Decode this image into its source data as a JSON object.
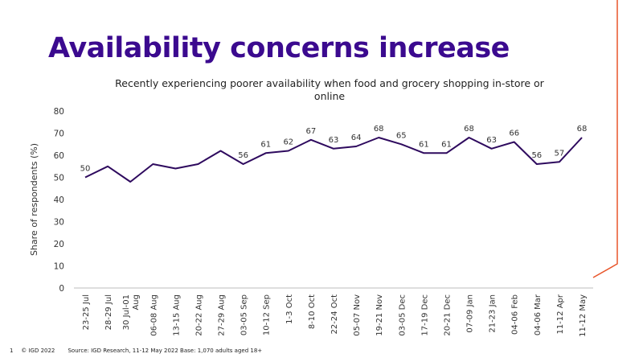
{
  "page": {
    "title": "Availability concerns increase",
    "title_color": "#3b0a8f",
    "page_number": "1",
    "copyright": "© IGD 2022",
    "source": "Source: IGD Research, 11-12 May 2022 Base: 1,070 adults aged 18+",
    "accent_color": "#e8552a"
  },
  "chart_data": {
    "type": "line",
    "title": "Recently experiencing poorer availability when food and grocery shopping in-store or online",
    "xlabel": "",
    "ylabel": "Share of respondents (%)",
    "ylim": [
      0,
      80
    ],
    "yticks": [
      0,
      10,
      20,
      30,
      40,
      50,
      60,
      70,
      80
    ],
    "grid": false,
    "line_color": "#2e0a5e",
    "categories": [
      "23-25 Jul",
      "28-29 Jul",
      "30 Jul-01 Aug",
      "06-08 Aug",
      "13-15 Aug",
      "20-22 Aug",
      "27-29 Aug",
      "03-05 Sep",
      "10-12 Sep",
      "1-3 Oct",
      "8-10 Oct",
      "22-24 Oct",
      "05-07 Nov",
      "19-21 Nov",
      "03-05 Dec",
      "17-19 Dec",
      "20-21 Dec",
      "07-09 Jan",
      "21-23 Jan",
      "04-06 Feb",
      "04-06 Mar",
      "11-12 Apr",
      "11-12 May"
    ],
    "series": [
      {
        "values": [
          50,
          55,
          48,
          56,
          54,
          56,
          62,
          56,
          61,
          62,
          67,
          63,
          64,
          68,
          65,
          61,
          61,
          68,
          63,
          66,
          56,
          57,
          68
        ],
        "labels": [
          "50",
          "",
          "",
          "",
          "",
          "",
          "",
          "56",
          "61",
          "62",
          "67",
          "63",
          "64",
          "68",
          "65",
          "61",
          "61",
          "68",
          "63",
          "66",
          "56",
          "57",
          "68"
        ]
      }
    ]
  }
}
